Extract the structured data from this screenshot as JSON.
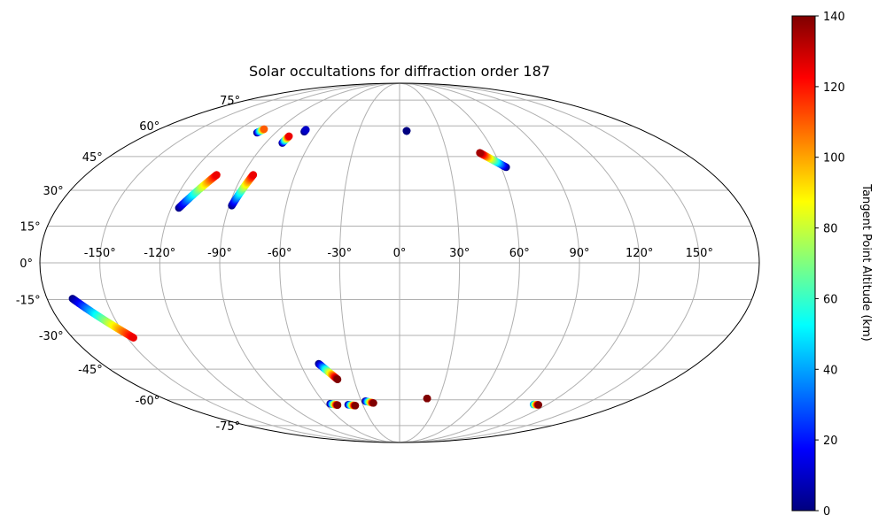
{
  "chart_data": {
    "type": "scatter",
    "projection": "mollweide",
    "title": "Solar occultations for diffraction order 187",
    "lon_ticks": [
      "-150°",
      "-120°",
      "-90°",
      "-60°",
      "-30°",
      "0°",
      "30°",
      "60°",
      "90°",
      "120°",
      "150°"
    ],
    "lon_tick_values": [
      -150,
      -120,
      -90,
      -60,
      -30,
      0,
      30,
      60,
      90,
      120,
      150
    ],
    "lat_ticks": [
      "-75°",
      "-60°",
      "-45°",
      "-30°",
      "-15°",
      "0°",
      "15°",
      "30°",
      "45°",
      "60°",
      "75°"
    ],
    "lat_tick_values": [
      -75,
      -60,
      -45,
      -30,
      -15,
      0,
      15,
      30,
      45,
      60,
      75
    ],
    "grid": true,
    "colorbar": {
      "label": "Tangent Point Altitude (km)",
      "colormap": "jet",
      "range": [
        0,
        140
      ],
      "ticks": [
        "0",
        "20",
        "40",
        "60",
        "80",
        "100",
        "120",
        "140"
      ],
      "tick_values": [
        0,
        20,
        40,
        60,
        80,
        100,
        120,
        140
      ],
      "position": "right"
    },
    "tracks": [
      {
        "lon_start": -103.5,
        "lat_start": 56.5,
        "lon_end": -101.5,
        "lat_end": 58.3,
        "alt_start": 0,
        "alt_end": 110
      },
      {
        "lon_start": -78.8,
        "lat_start": 51.4,
        "lon_end": -78.0,
        "lat_end": 54.7,
        "alt_start": 0,
        "alt_end": 125
      },
      {
        "lon_start": -69.8,
        "lat_start": 57.0,
        "lon_end": -69.8,
        "lat_end": 58.0,
        "alt_start": 0,
        "alt_end": 10
      },
      {
        "lon_start": 5.2,
        "lat_start": 57.4,
        "lon_end": 5.2,
        "lat_end": 57.4,
        "alt_start": 0,
        "alt_end": 0
      },
      {
        "lon_start": 63.0,
        "lat_start": 40.1,
        "lon_end": 50.8,
        "lat_end": 46.7,
        "alt_start": 0,
        "alt_end": 135
      },
      {
        "lon_start": -116.0,
        "lat_start": 22.5,
        "lon_end": -105.0,
        "lat_end": 36.7,
        "alt_start": 0,
        "alt_end": 125
      },
      {
        "lon_start": -88.6,
        "lat_start": 23.5,
        "lon_end": -84.0,
        "lat_end": 36.7,
        "alt_start": 0,
        "alt_end": 125
      },
      {
        "lon_start": -167.0,
        "lat_start": -14.6,
        "lon_end": -146.5,
        "lat_end": -31.0,
        "alt_start": 0,
        "alt_end": 125
      },
      {
        "lon_start": -48.9,
        "lat_start": -42.5,
        "lon_end": -40.8,
        "lat_end": -49.8,
        "alt_start": 0,
        "alt_end": 140
      },
      {
        "lon_start": -56.0,
        "lat_start": -62.1,
        "lon_end": -50.8,
        "lat_end": -62.8,
        "alt_start": 0,
        "alt_end": 140
      },
      {
        "lon_start": -41.9,
        "lat_start": -62.6,
        "lon_end": -36.5,
        "lat_end": -63.1,
        "alt_start": 0,
        "alt_end": 140
      },
      {
        "lon_start": -26.8,
        "lat_start": -60.7,
        "lon_end": -20.9,
        "lat_end": -61.7,
        "alt_start": 0,
        "alt_end": 140
      },
      {
        "lon_start": 21.0,
        "lat_start": -59.3,
        "lon_end": 21.0,
        "lat_end": -59.3,
        "alt_start": 140,
        "alt_end": 140
      },
      {
        "lon_start": 109.0,
        "lat_start": -62.5,
        "lon_end": 113.5,
        "lat_end": -62.7,
        "alt_start": 40,
        "alt_end": 140
      }
    ]
  }
}
